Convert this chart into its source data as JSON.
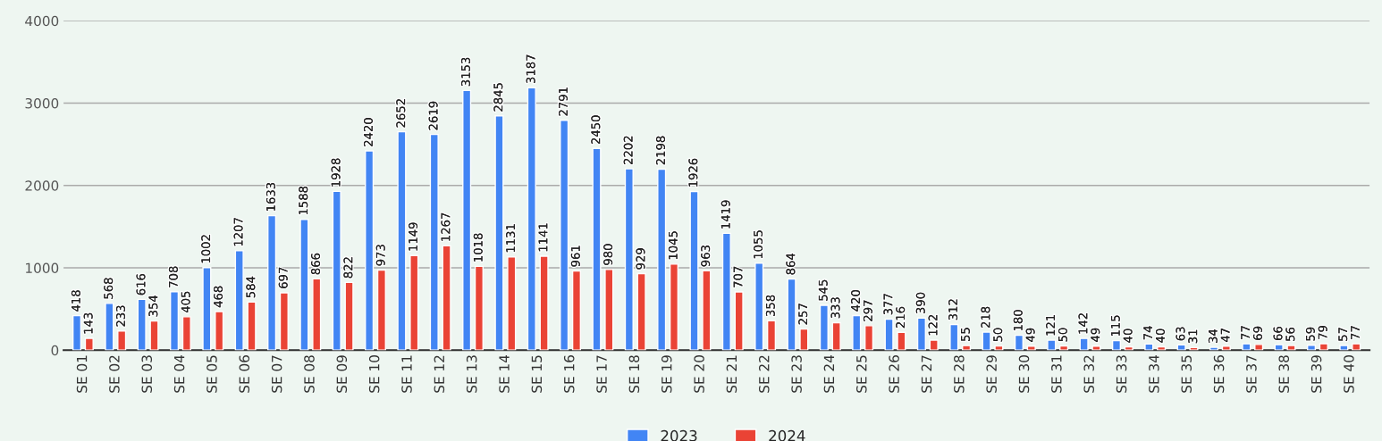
{
  "chart_data": {
    "type": "bar",
    "categories": [
      "SE 01",
      "SE 02",
      "SE 03",
      "SE 04",
      "SE 05",
      "SE 06",
      "SE 07",
      "SE 08",
      "SE 09",
      "SE 10",
      "SE 11",
      "SE 12",
      "SE 13",
      "SE 14",
      "SE 15",
      "SE 16",
      "SE 17",
      "SE 18",
      "SE 19",
      "SE 20",
      "SE 21",
      "SE 22",
      "SE 23",
      "SE 24",
      "SE 25",
      "SE 26",
      "SE 27",
      "SE 28",
      "SE 29",
      "SE 30",
      "SE 31",
      "SE 32",
      "SE 33",
      "SE 34",
      "SE 35",
      "SE 36",
      "SE 37",
      "SE 38",
      "SE 39",
      "SE 40"
    ],
    "series": [
      {
        "name": "2023",
        "color": "#4285f4",
        "values": [
          418,
          568,
          616,
          708,
          1002,
          1207,
          1633,
          1588,
          1928,
          2420,
          2652,
          2619,
          3153,
          2845,
          3187,
          2791,
          2450,
          2202,
          2198,
          1926,
          1419,
          1055,
          864,
          545,
          420,
          377,
          390,
          312,
          218,
          180,
          121,
          142,
          115,
          74,
          63,
          34,
          77,
          66,
          59,
          57
        ]
      },
      {
        "name": "2024",
        "color": "#ea4335",
        "values": [
          143,
          233,
          354,
          405,
          468,
          584,
          697,
          866,
          822,
          973,
          1149,
          1267,
          1018,
          1131,
          1141,
          961,
          980,
          929,
          1045,
          963,
          707,
          358,
          257,
          333,
          297,
          216,
          122,
          55,
          50,
          49,
          50,
          49,
          40,
          40,
          31,
          47,
          69,
          56,
          79,
          77
        ]
      }
    ],
    "ylim": [
      0,
      4000
    ],
    "yticks": [
      0,
      1000,
      2000,
      3000,
      4000
    ],
    "grid": "y",
    "legend": "bottom",
    "data_labels": true
  }
}
